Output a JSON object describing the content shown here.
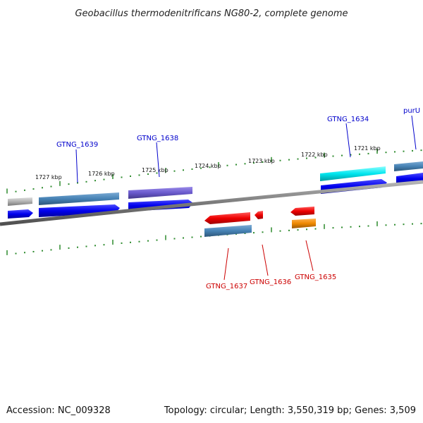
{
  "title": "Geobacillus thermodenitrificans NG80-2, complete genome",
  "footer": {
    "accession": "Accession: NC_009328",
    "summary": "Topology: circular; Length: 3,550,319 bp; Genes: 3,509"
  },
  "ruler_labels": [
    "1727 kbp",
    "1726 kbp",
    "1725 kbp",
    "1724 kbp",
    "1723 kbp",
    "1722 kbp",
    "1721 kbp"
  ],
  "gene_labels": {
    "forward": [
      "GTNG_1639",
      "GTNG_1638",
      "GTNG_1634",
      "purU"
    ],
    "reverse": [
      "GTNG_1637",
      "GTNG_1636",
      "GTNG_1635"
    ]
  },
  "colors": {
    "forward_label": "#0000cc",
    "reverse_label": "#cc0000",
    "backbone": "#808080",
    "tick": "#2e8b2e",
    "cds_forward": "#0000ee",
    "cds_reverse": "#ee0000",
    "gene_steelblue": "#4682b4",
    "gene_slateblue": "#6a5acd",
    "gene_cyan": "#00e5ee",
    "gene_gray": "#b0b0b0",
    "gene_orange": "#ee8800"
  }
}
